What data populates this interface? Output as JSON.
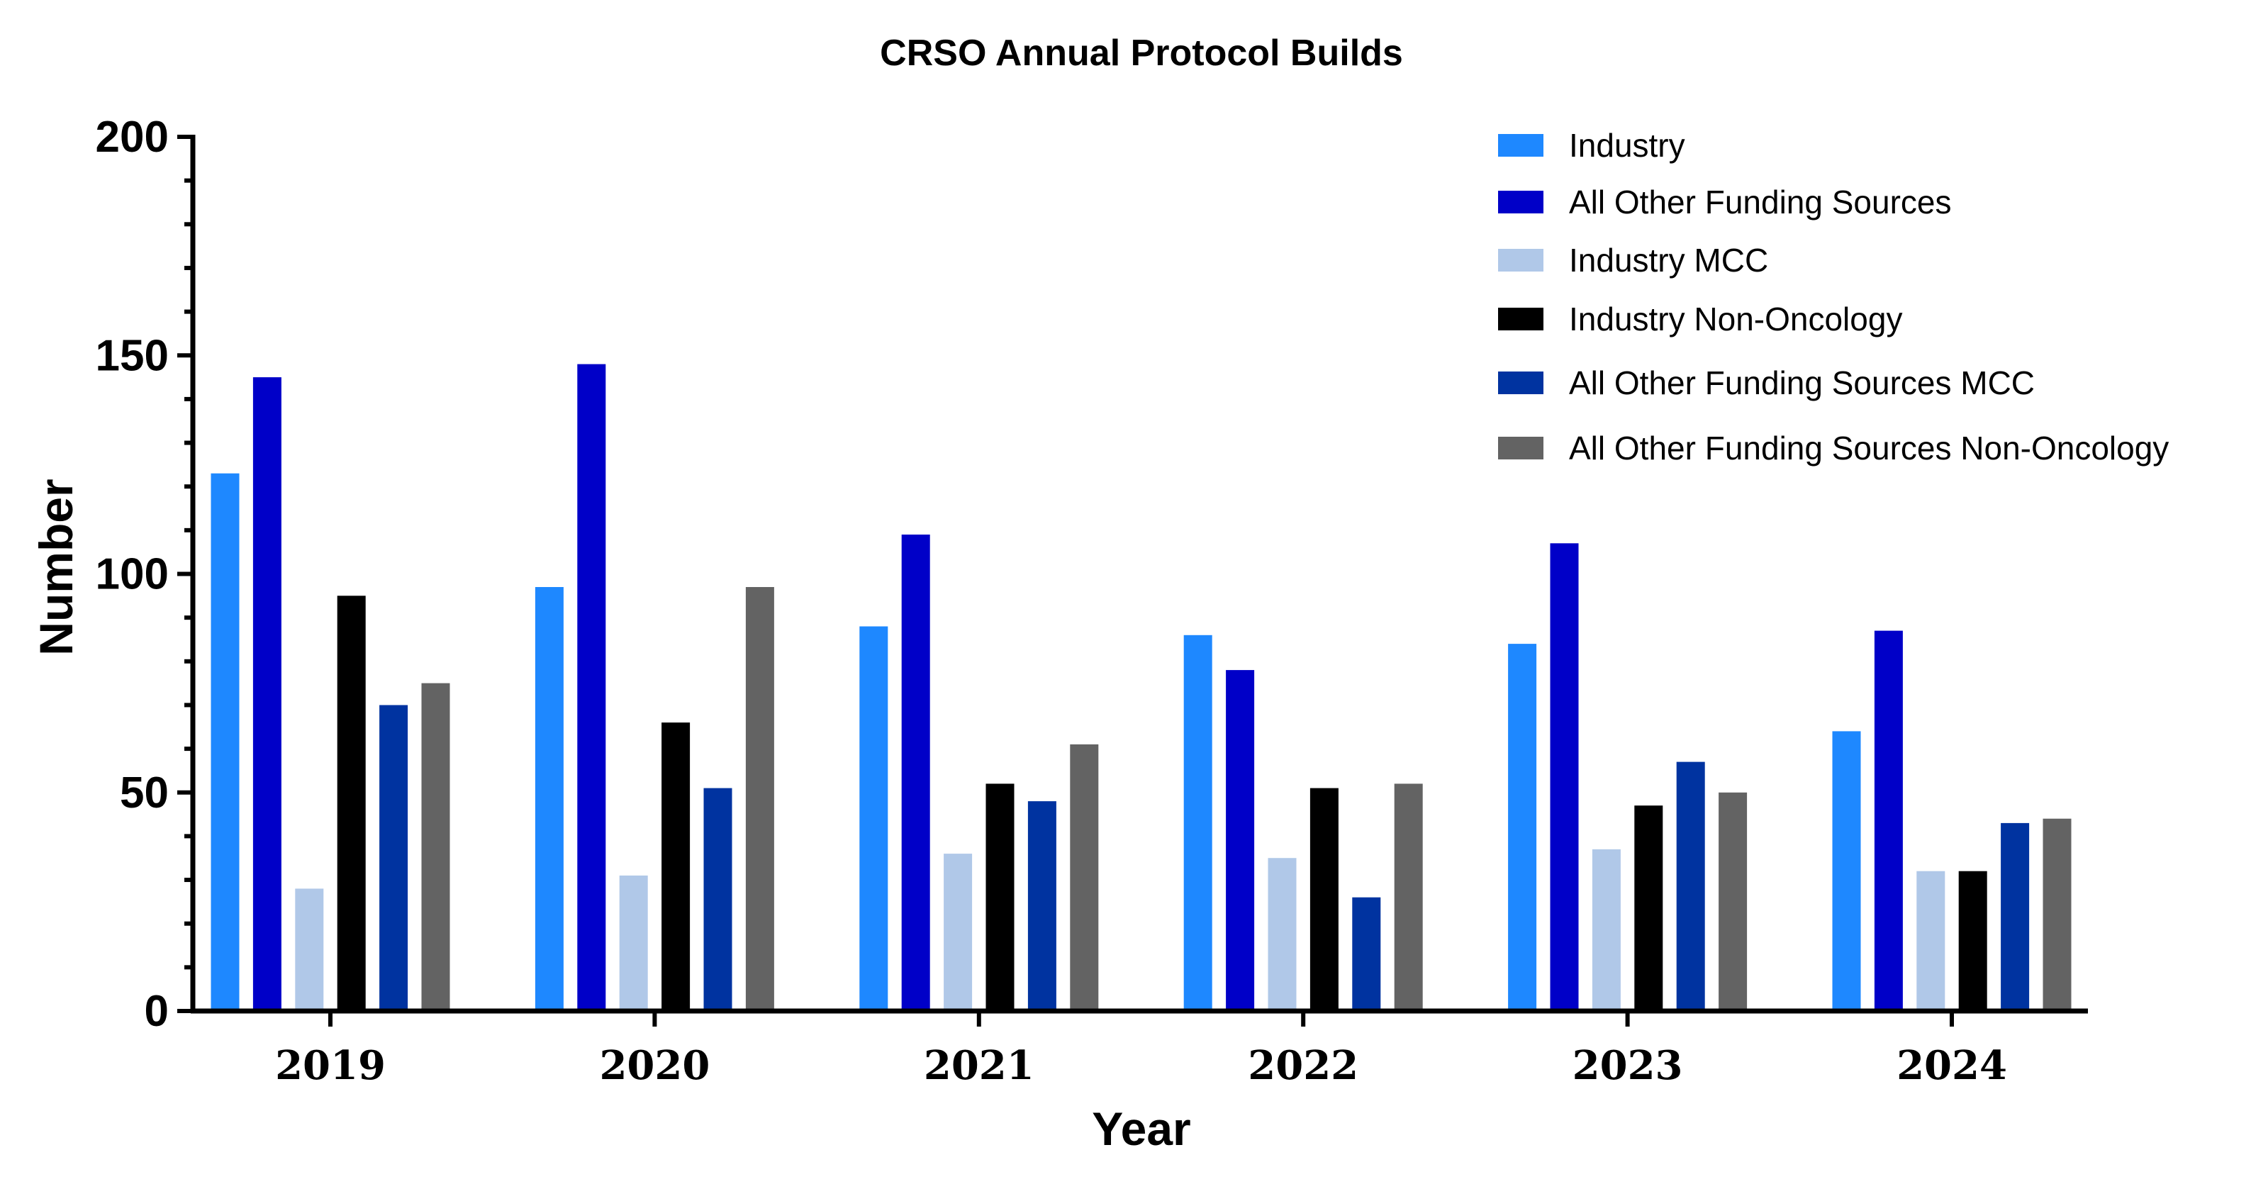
{
  "chart_data": {
    "type": "bar",
    "title": "CRSO Annual Protocol Builds",
    "xlabel": "Year",
    "ylabel": "Number",
    "categories": [
      "2019",
      "2020",
      "2021",
      "2022",
      "2023",
      "2024"
    ],
    "ylim": [
      0,
      200
    ],
    "yticks": [
      "0",
      "50",
      "100",
      "150",
      "200"
    ],
    "legend_position": "top-right",
    "grid": false,
    "series": [
      {
        "name": "Industry",
        "color": "#1e88ff",
        "values": [
          123,
          97,
          88,
          86,
          84,
          64
        ]
      },
      {
        "name": "All Other Funding Sources",
        "color": "#0000c8",
        "values": [
          145,
          148,
          109,
          78,
          107,
          87
        ]
      },
      {
        "name": "Industry MCC",
        "color": "#b0c8e8",
        "values": [
          28,
          31,
          36,
          35,
          37,
          32
        ]
      },
      {
        "name": "Industry Non-Oncology",
        "color": "#000000",
        "values": [
          95,
          66,
          52,
          51,
          47,
          32
        ]
      },
      {
        "name": "All Other Funding Sources MCC",
        "color": "#0033a0",
        "values": [
          70,
          51,
          48,
          26,
          57,
          43
        ]
      },
      {
        "name": "All Other Funding Sources Non-Oncology",
        "color": "#636363",
        "values": [
          75,
          97,
          61,
          52,
          50,
          44
        ]
      }
    ]
  }
}
